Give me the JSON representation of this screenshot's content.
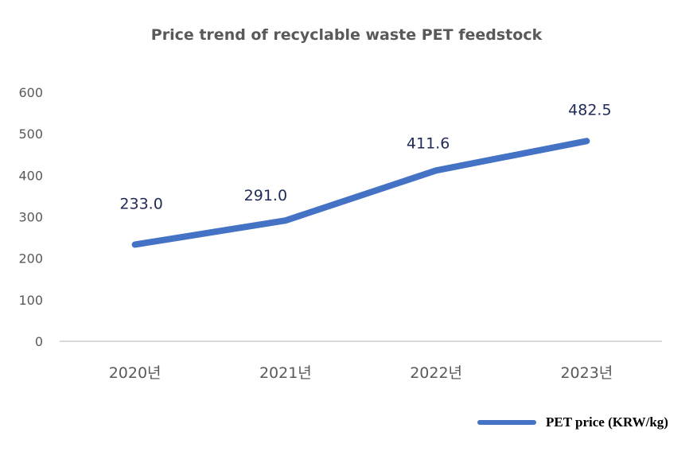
{
  "chart_data": {
    "type": "line",
    "title": "Price trend of recyclable waste PET feedstock",
    "categories": [
      "2020년",
      "2021년",
      "2022년",
      "2023년"
    ],
    "series": [
      {
        "name": "PET price (KRW/kg)",
        "values": [
          233.0,
          291.0,
          411.6,
          482.5
        ],
        "labels": [
          "233.0",
          "291.0",
          "411.6",
          "482.5"
        ],
        "color": "#4472C4"
      }
    ],
    "ylim": [
      0,
      600
    ],
    "yticks": [
      "0",
      "100",
      "200",
      "300",
      "400",
      "500",
      "600"
    ],
    "grid": false,
    "legend": "bottom-right",
    "xlabel": "",
    "ylabel": ""
  }
}
